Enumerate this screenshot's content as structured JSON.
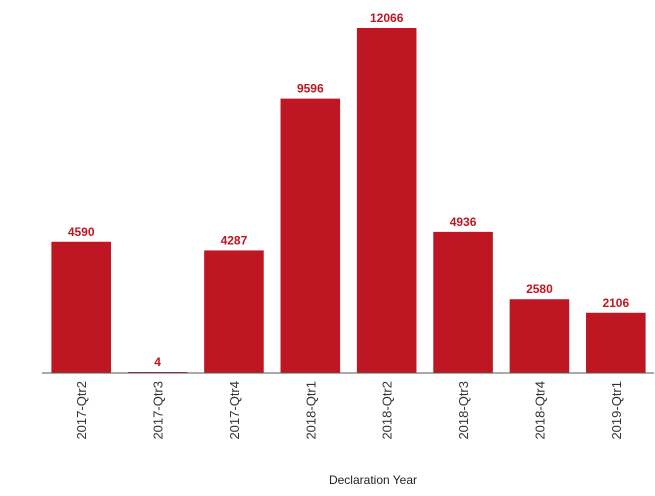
{
  "chart_data": {
    "type": "bar",
    "title": "",
    "xlabel": "Declaration Year",
    "ylabel": "",
    "categories": [
      "2017-Qtr2",
      "2017-Qtr3",
      "2017-Qtr4",
      "2018-Qtr1",
      "2018-Qtr2",
      "2018-Qtr3",
      "2018-Qtr4",
      "2019-Qtr1"
    ],
    "values": [
      4590,
      4,
      4287,
      9596,
      12066,
      4936,
      2580,
      2106
    ],
    "data_labels": [
      "4590",
      "4",
      "4287",
      "9596",
      "12066",
      "4936",
      "2580",
      "2106"
    ],
    "ylim": [
      0,
      12066
    ],
    "grid": false,
    "legend": "none",
    "colors": {
      "bar": "#be1622",
      "label": "#be1622",
      "axis": "#555555"
    }
  }
}
